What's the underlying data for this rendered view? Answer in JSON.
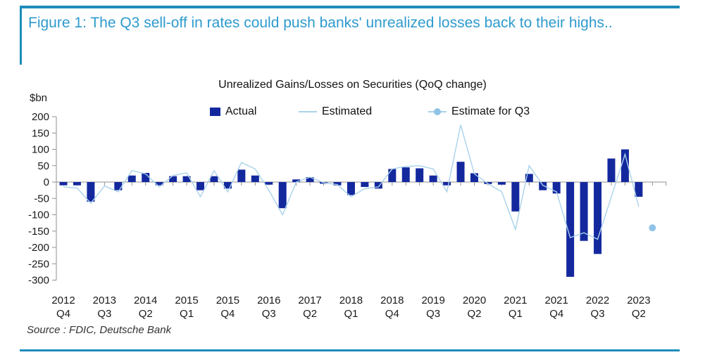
{
  "header": {
    "title": "Figure 1: The Q3 sell-off in rates could push banks' unrealized losses back to their highs.."
  },
  "source": {
    "text": "Source : FDIC, Deutsche Bank"
  },
  "colors": {
    "accent_teal": "#1d8cba",
    "header_text": "#2e9acd",
    "actual_bar": "#14289e",
    "estimated_line": "#a9d2ea",
    "estimate_dot": "#8fc4e6",
    "axis": "#909090",
    "tick_text": "#1a1a1a"
  },
  "chart_data": {
    "type": "bar",
    "title": "Unrealized Gains/Losses on Securities (QoQ change)",
    "unit_label": "$bn",
    "ylim": [
      -300,
      200
    ],
    "ytick_step": 50,
    "grid": false,
    "legend_position": "top",
    "legend": [
      {
        "label": "Actual",
        "marker": "bar",
        "color": "#14289e"
      },
      {
        "label": "Estimated",
        "marker": "line",
        "color": "#a9d2ea"
      },
      {
        "label": "Estimate for Q3",
        "marker": "dot-line",
        "color": "#8fc4e6"
      }
    ],
    "categories": [
      "2012 Q4",
      "2013 Q1",
      "2013 Q2",
      "2013 Q3",
      "2013 Q4",
      "2014 Q1",
      "2014 Q2",
      "2014 Q3",
      "2014 Q4",
      "2015 Q1",
      "2015 Q2",
      "2015 Q3",
      "2015 Q4",
      "2016 Q1",
      "2016 Q2",
      "2016 Q3",
      "2016 Q4",
      "2017 Q1",
      "2017 Q2",
      "2017 Q3",
      "2017 Q4",
      "2018 Q1",
      "2018 Q2",
      "2018 Q3",
      "2018 Q4",
      "2019 Q1",
      "2019 Q2",
      "2019 Q3",
      "2019 Q4",
      "2020 Q1",
      "2020 Q2",
      "2020 Q3",
      "2020 Q4",
      "2021 Q1",
      "2021 Q2",
      "2021 Q3",
      "2021 Q4",
      "2022 Q1",
      "2022 Q2",
      "2022 Q3",
      "2022 Q4",
      "2023 Q1",
      "2023 Q2"
    ],
    "xtick_label_every": 3,
    "series": [
      {
        "name": "Actual",
        "type": "bar",
        "values": [
          -10,
          -10,
          -60,
          0,
          -25,
          20,
          28,
          -10,
          18,
          18,
          -25,
          18,
          -20,
          38,
          20,
          -8,
          -80,
          8,
          15,
          -5,
          -10,
          -40,
          -15,
          -20,
          40,
          45,
          42,
          20,
          -10,
          62,
          27,
          -6,
          -8,
          -90,
          25,
          -25,
          -35,
          -290,
          -180,
          -220,
          72,
          100,
          -45
        ]
      },
      {
        "name": "Estimated",
        "type": "line",
        "values": [
          -15,
          -18,
          -65,
          -12,
          -30,
          35,
          25,
          -15,
          20,
          28,
          -45,
          35,
          -30,
          60,
          40,
          -25,
          -100,
          0,
          15,
          -2,
          -8,
          -45,
          -20,
          -15,
          40,
          48,
          50,
          40,
          -30,
          175,
          25,
          -5,
          -30,
          -145,
          50,
          -10,
          -30,
          -170,
          -155,
          -175,
          -45,
          85,
          -75
        ]
      }
    ],
    "estimate_point": {
      "name": "Estimate for Q3",
      "category": "2023 Q3",
      "value": -140
    }
  }
}
